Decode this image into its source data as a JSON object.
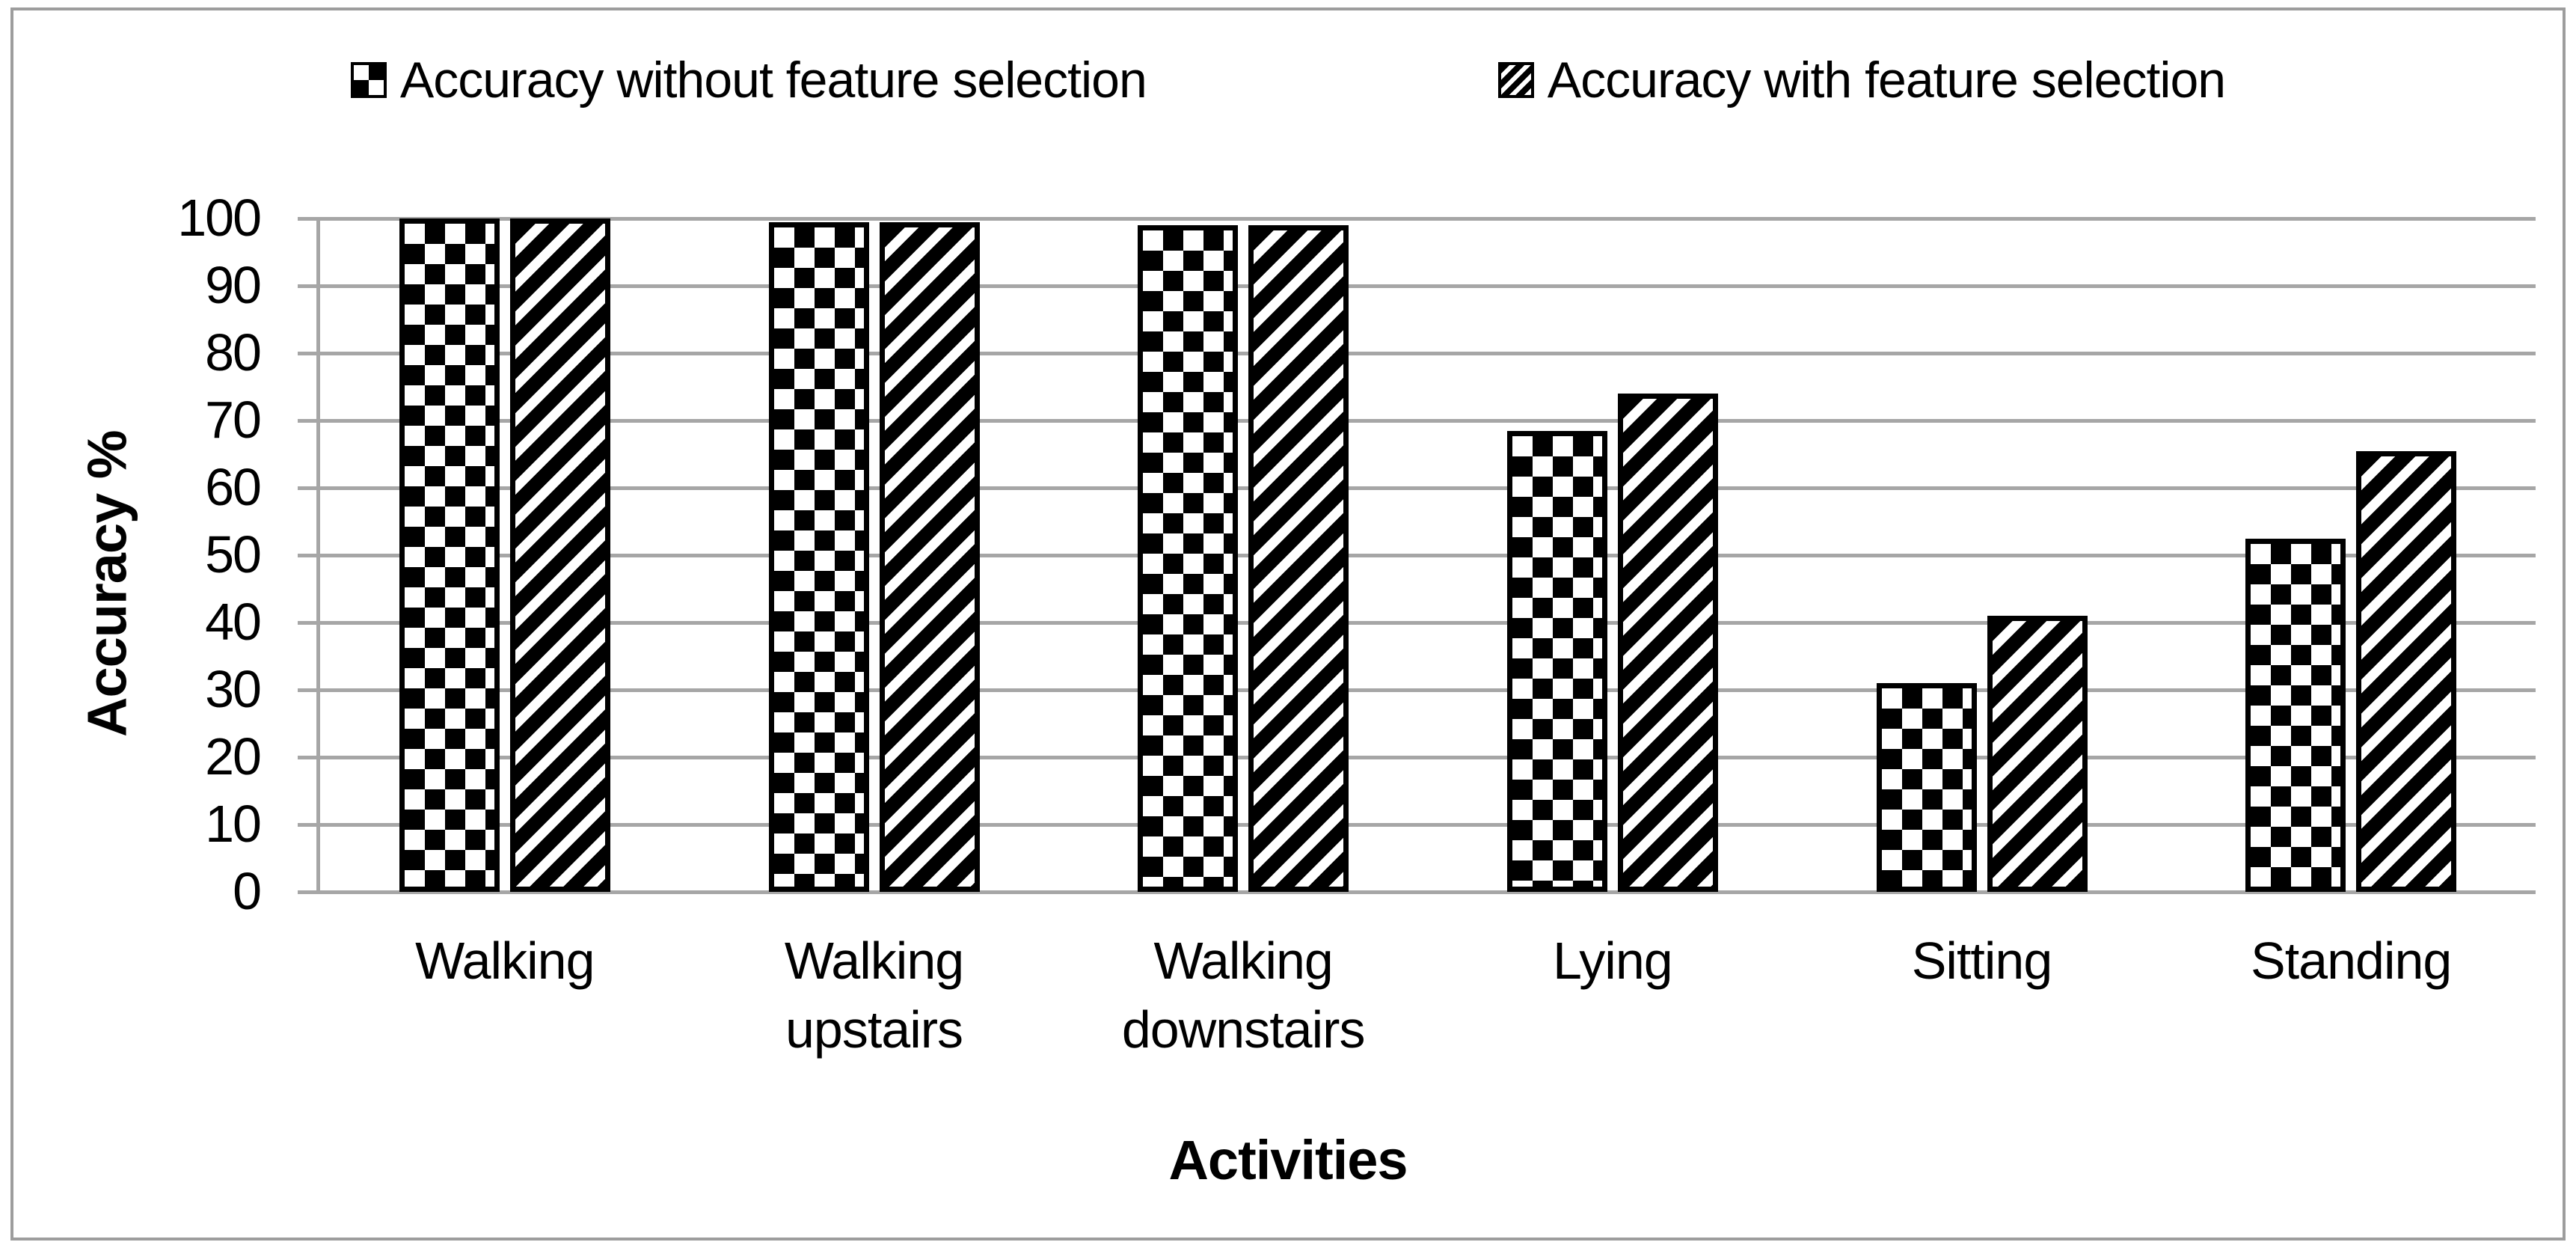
{
  "chart_data": {
    "type": "bar",
    "title": "",
    "categories": [
      "Walking",
      "Walking upstairs",
      "Walking downstairs",
      "Lying",
      "Sitting",
      "Standing"
    ],
    "series": [
      {
        "name": "Accuracy without feature selection",
        "pattern": "checker",
        "values": [
          100,
          99.5,
          99,
          68.5,
          31,
          52.5
        ]
      },
      {
        "name": "Accuracy with feature selection",
        "pattern": "diagonal",
        "values": [
          100,
          99.5,
          99,
          74,
          41,
          65.5
        ]
      }
    ],
    "xlabel": "Activities",
    "ylabel": "Accuracy %",
    "ylim": [
      0,
      100
    ],
    "yticks": [
      0,
      10,
      20,
      30,
      40,
      50,
      60,
      70,
      80,
      90,
      100
    ],
    "grid": true,
    "legend_position": "top"
  },
  "colors": {
    "background": "#ffffff",
    "gridline": "#a6a6a6",
    "frame_border": "#9d9d9d",
    "bar_pattern": "#000000",
    "text": "#000000"
  }
}
